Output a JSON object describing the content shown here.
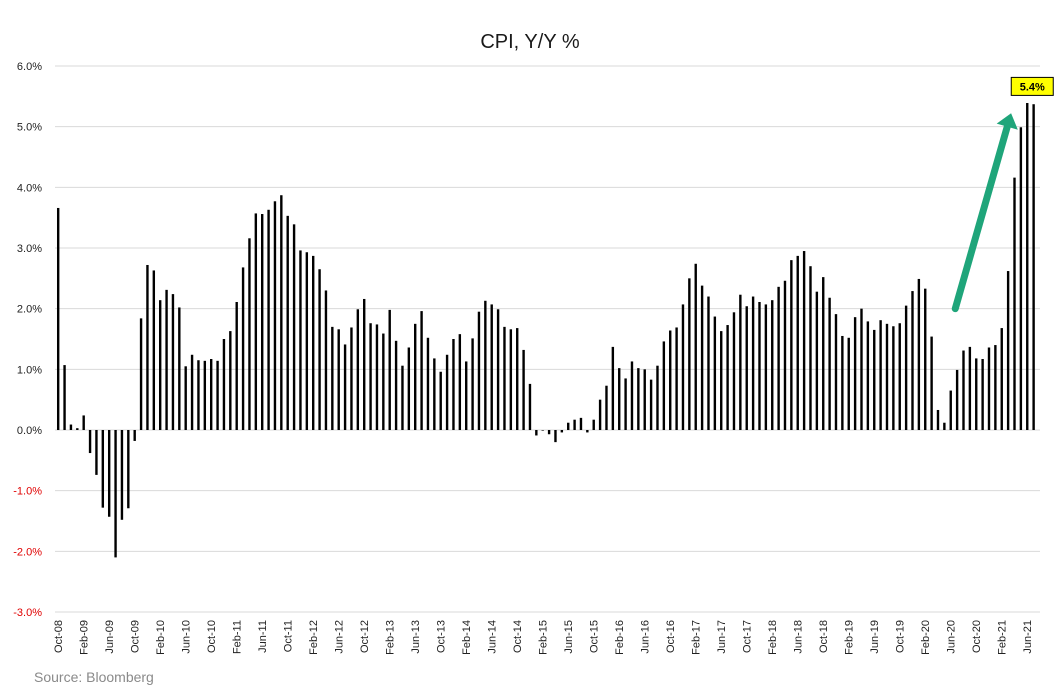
{
  "colors": {
    "bar": "#000000",
    "grid": "#d9d9d9",
    "negative_tick": "#e00000",
    "positive_tick": "#222222",
    "callout_fill": "#ffff00",
    "arrow": "#1fa57a"
  },
  "chart_data": {
    "type": "bar",
    "title": "CPI, Y/Y %",
    "source": "Source: Bloomberg",
    "ylim": [
      -3.0,
      6.0
    ],
    "yticks": [
      "-3.0%",
      "-2.0%",
      "-1.0%",
      "0.0%",
      "1.0%",
      "2.0%",
      "3.0%",
      "4.0%",
      "5.0%",
      "6.0%"
    ],
    "ytick_values": [
      -3,
      -2,
      -1,
      0,
      1,
      2,
      3,
      4,
      5,
      6
    ],
    "grid": "horizontal",
    "start_month": "Oct-08",
    "xtick_labels": [
      "Oct-08",
      "Feb-09",
      "Jun-09",
      "Oct-09",
      "Feb-10",
      "Jun-10",
      "Oct-10",
      "Feb-11",
      "Jun-11",
      "Oct-11",
      "Feb-12",
      "Jun-12",
      "Oct-12",
      "Feb-13",
      "Jun-13",
      "Oct-13",
      "Feb-14",
      "Jun-14",
      "Oct-14",
      "Feb-15",
      "Jun-15",
      "Oct-15",
      "Feb-16",
      "Jun-16",
      "Oct-16",
      "Feb-17",
      "Jun-17",
      "Oct-17",
      "Feb-18",
      "Jun-18",
      "Oct-18",
      "Feb-19",
      "Jun-19",
      "Oct-19",
      "Feb-20",
      "Jun-20",
      "Oct-20",
      "Feb-21",
      "Jun-21"
    ],
    "values": [
      3.66,
      1.07,
      0.09,
      0.03,
      0.24,
      -0.38,
      -0.74,
      -1.28,
      -1.43,
      -2.1,
      -1.48,
      -1.29,
      -0.18,
      1.84,
      2.72,
      2.63,
      2.14,
      2.31,
      2.24,
      2.02,
      1.05,
      1.24,
      1.15,
      1.14,
      1.17,
      1.14,
      1.5,
      1.63,
      2.11,
      2.68,
      3.16,
      3.57,
      3.56,
      3.63,
      3.77,
      3.87,
      3.53,
      3.39,
      2.96,
      2.93,
      2.87,
      2.65,
      2.3,
      1.7,
      1.66,
      1.41,
      1.69,
      1.99,
      2.16,
      1.76,
      1.74,
      1.59,
      1.98,
      1.47,
      1.06,
      1.36,
      1.75,
      1.96,
      1.52,
      1.18,
      0.96,
      1.24,
      1.5,
      1.58,
      1.13,
      1.51,
      1.95,
      2.13,
      2.07,
      1.99,
      1.7,
      1.66,
      1.68,
      1.32,
      0.76,
      -0.09,
      0.0,
      -0.07,
      -0.2,
      -0.04,
      0.12,
      0.17,
      0.2,
      -0.04,
      0.17,
      0.5,
      0.73,
      1.37,
      1.02,
      0.85,
      1.13,
      1.02,
      1.0,
      0.83,
      1.06,
      1.46,
      1.64,
      1.69,
      2.07,
      2.5,
      2.74,
      2.38,
      2.2,
      1.87,
      1.63,
      1.73,
      1.94,
      2.23,
      2.04,
      2.2,
      2.11,
      2.07,
      2.14,
      2.36,
      2.46,
      2.8,
      2.87,
      2.95,
      2.7,
      2.28,
      2.52,
      2.18,
      1.91,
      1.55,
      1.52,
      1.86,
      2.0,
      1.79,
      1.65,
      1.81,
      1.75,
      1.71,
      1.76,
      2.05,
      2.29,
      2.49,
      2.33,
      1.54,
      0.33,
      0.12,
      0.65,
      0.99,
      1.31,
      1.37,
      1.18,
      1.17,
      1.36,
      1.4,
      1.68,
      2.62,
      4.16,
      4.99,
      5.39,
      5.37
    ],
    "callout": {
      "label": "5.4%",
      "month_index": 152,
      "value": 5.4
    }
  }
}
